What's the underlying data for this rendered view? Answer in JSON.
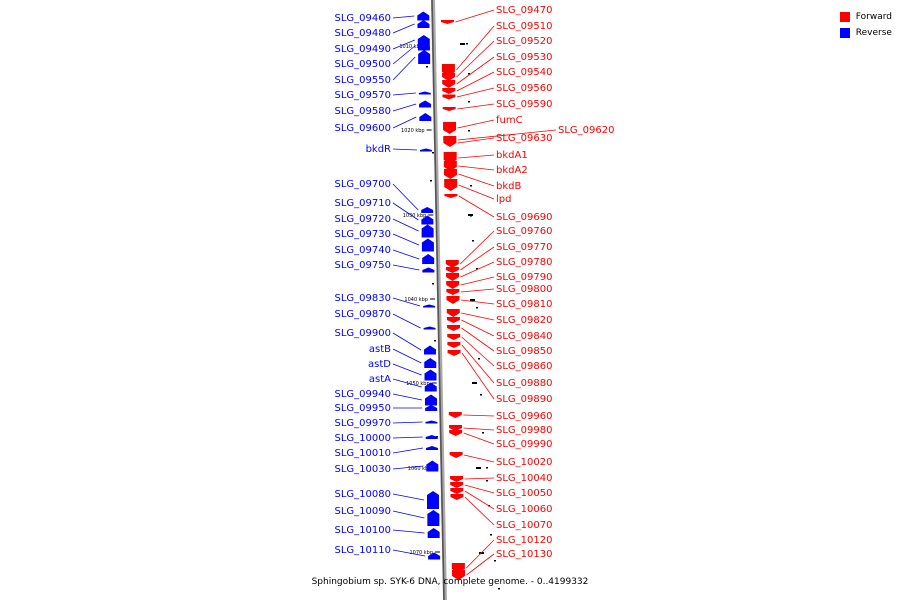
{
  "legend": {
    "forward_label": "Forward",
    "reverse_label": "Reverse",
    "forward_color": "#ff0000",
    "reverse_color": "#0000ff"
  },
  "caption": "Sphingobium sp. SYK-6 DNA, complete genome. - 0..4199332",
  "scale_marks": [
    "1010 kbp",
    "1020 kbp",
    "1030 kbp",
    "1040 kbp",
    "1050 kbp",
    "1060 kbp",
    "1070 kbp"
  ],
  "reverse_genes": [
    "SLG_09460",
    "SLG_09480",
    "SLG_09490",
    "SLG_09500",
    "SLG_09550",
    "SLG_09570",
    "SLG_09580",
    "SLG_09600",
    "bkdR",
    "SLG_09700",
    "SLG_09710",
    "SLG_09720",
    "SLG_09730",
    "SLG_09740",
    "SLG_09750",
    "SLG_09830",
    "SLG_09870",
    "SLG_09900",
    "astB",
    "astD",
    "astA",
    "SLG_09940",
    "SLG_09950",
    "SLG_09970",
    "SLG_10000",
    "SLG_10010",
    "SLG_10030",
    "SLG_10080",
    "SLG_10090",
    "SLG_10100",
    "SLG_10110"
  ],
  "forward_genes": [
    "SLG_09470",
    "SLG_09510",
    "SLG_09520",
    "SLG_09530",
    "SLG_09540",
    "SLG_09560",
    "SLG_09590",
    "fumC",
    "SLG_09620",
    "SLG_09630",
    "bkdA1",
    "bkdA2",
    "bkdB",
    "lpd",
    "SLG_09690",
    "SLG_09760",
    "SLG_09770",
    "SLG_09780",
    "SLG_09790",
    "SLG_09800",
    "SLG_09810",
    "SLG_09820",
    "SLG_09840",
    "SLG_09850",
    "SLG_09860",
    "SLG_09880",
    "SLG_09890",
    "SLG_09960",
    "SLG_09980",
    "SLG_09990",
    "SLG_10020",
    "SLG_10040",
    "SLG_10050",
    "SLG_10060",
    "SLG_10070",
    "SLG_10120",
    "SLG_10130"
  ]
}
